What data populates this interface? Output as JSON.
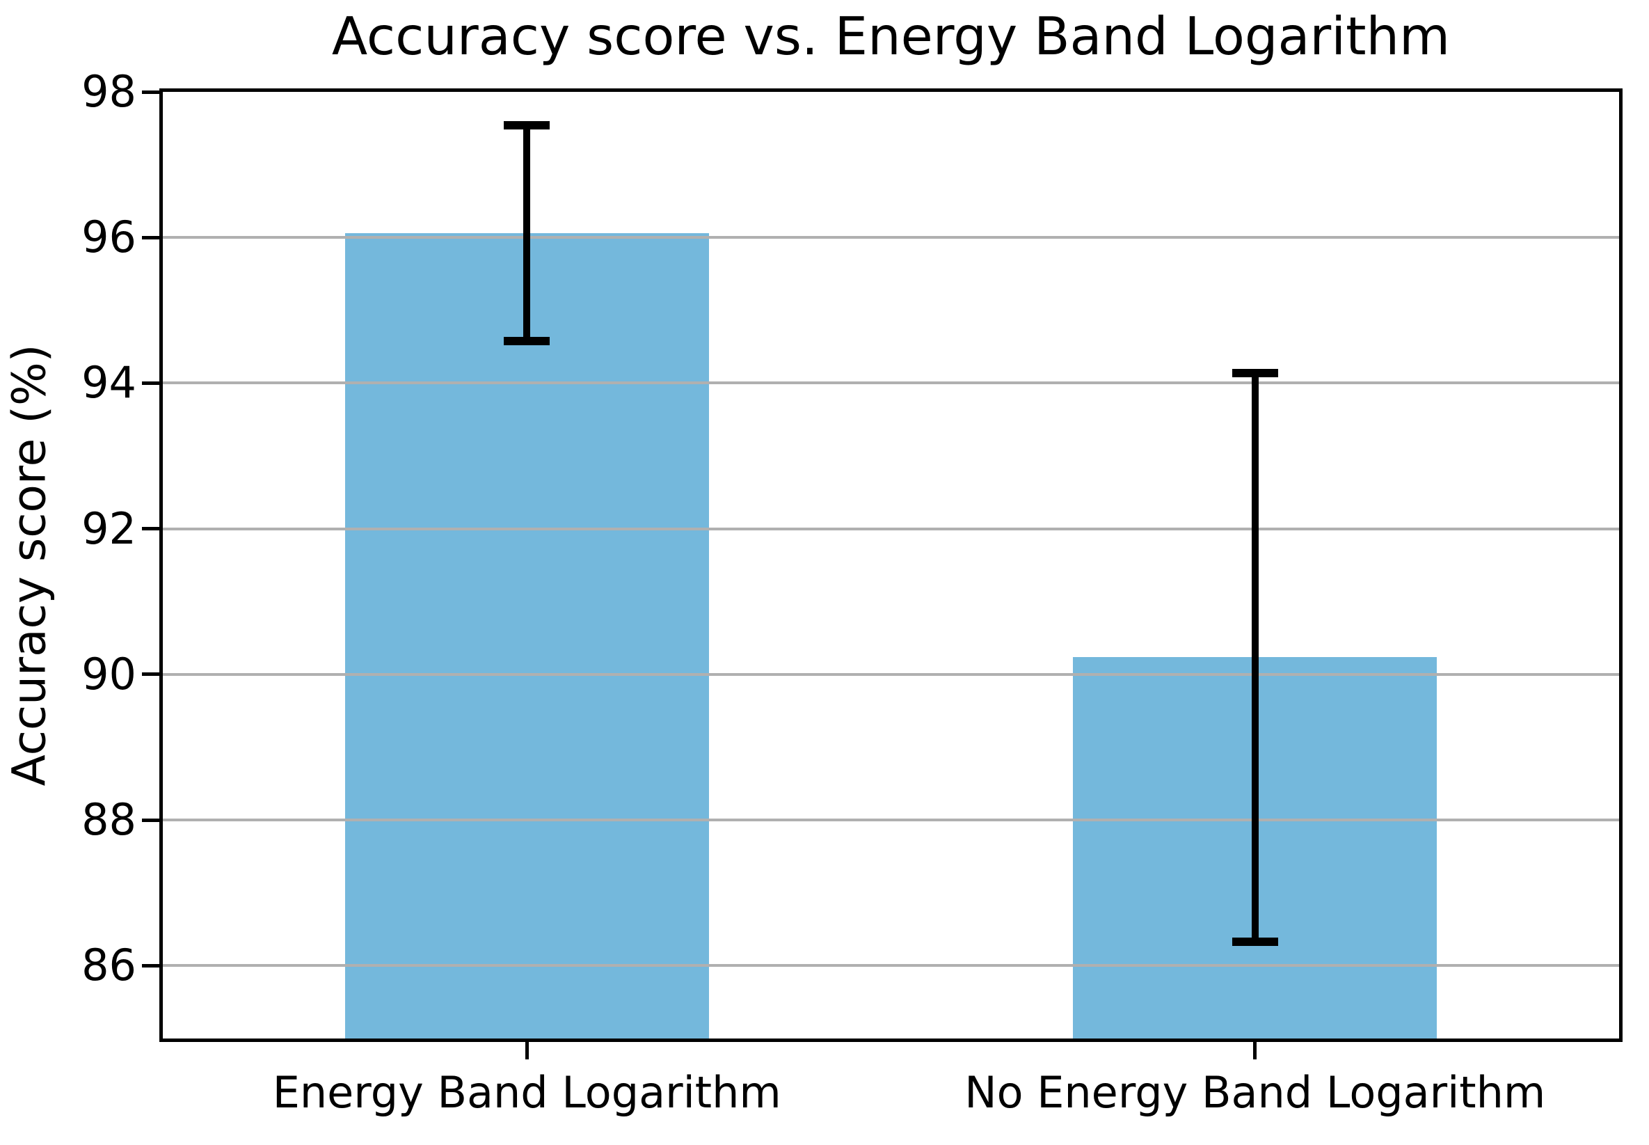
{
  "figure": {
    "background_color": "#ffffff"
  },
  "chart_data": {
    "type": "bar",
    "title": "Accuracy score vs. Energy Band Logarithm",
    "xlabel": "",
    "ylabel": "Accuracy score (%)",
    "categories": [
      "Energy Band Logarithm",
      "No Energy Band Logarithm"
    ],
    "values": [
      96.06,
      90.24
    ],
    "error_bars": [
      {
        "low": 94.58,
        "high": 97.54
      },
      {
        "low": 86.33,
        "high": 94.14
      }
    ],
    "ylim": [
      85,
      98
    ],
    "yticks": [
      86,
      88,
      90,
      92,
      94,
      96,
      98
    ],
    "grid": true,
    "legend": "none",
    "bar_color": "#74b8dc",
    "error_color": "#000000",
    "grid_color": "#b0b0b0",
    "axis_color": "#000000",
    "bar_width_fraction": 0.5
  }
}
